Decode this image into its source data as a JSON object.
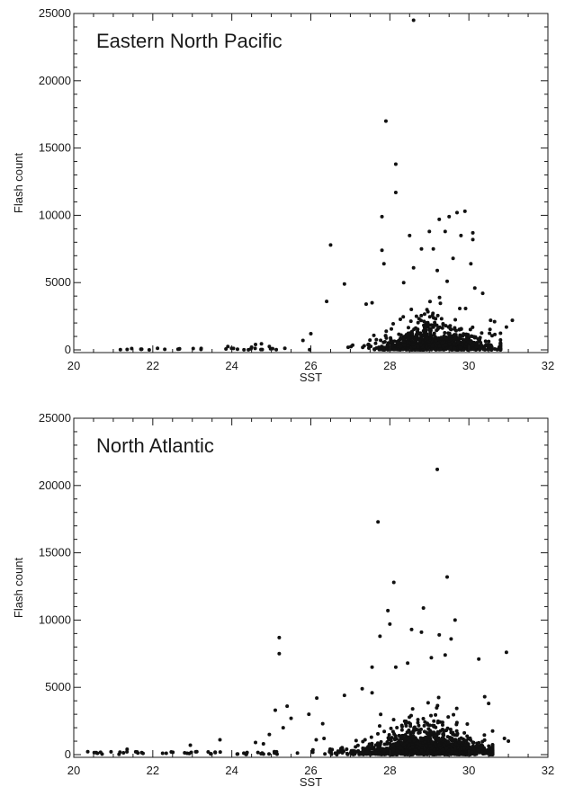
{
  "chart_data": [
    {
      "type": "scatter",
      "title": "Eastern North Pacific",
      "xlabel": "SST",
      "ylabel": "Flash count",
      "xlim": [
        20,
        32
      ],
      "ylim": [
        -200,
        25000
      ],
      "xticks": [
        20,
        22,
        24,
        26,
        28,
        30,
        32
      ],
      "yticks": [
        0,
        5000,
        10000,
        15000,
        20000,
        25000
      ],
      "grid": false,
      "legend": "none",
      "marker_color": "#111111",
      "outliers": [
        {
          "x": 28.6,
          "y": 24500
        },
        {
          "x": 27.9,
          "y": 17000
        },
        {
          "x": 28.15,
          "y": 13800
        },
        {
          "x": 28.15,
          "y": 11700
        },
        {
          "x": 29.9,
          "y": 10300
        },
        {
          "x": 29.7,
          "y": 10200
        },
        {
          "x": 29.5,
          "y": 9900
        },
        {
          "x": 29.25,
          "y": 9700
        },
        {
          "x": 27.8,
          "y": 9900
        },
        {
          "x": 30.1,
          "y": 8700
        },
        {
          "x": 28.5,
          "y": 8500
        },
        {
          "x": 29.0,
          "y": 8800
        },
        {
          "x": 29.4,
          "y": 8800
        },
        {
          "x": 29.8,
          "y": 8500
        },
        {
          "x": 26.5,
          "y": 7800
        },
        {
          "x": 29.1,
          "y": 7500
        },
        {
          "x": 30.1,
          "y": 8200
        },
        {
          "x": 27.8,
          "y": 7400
        },
        {
          "x": 28.8,
          "y": 7500
        },
        {
          "x": 29.6,
          "y": 6800
        },
        {
          "x": 30.05,
          "y": 6400
        },
        {
          "x": 27.85,
          "y": 6400
        },
        {
          "x": 28.6,
          "y": 6100
        },
        {
          "x": 29.2,
          "y": 5900
        },
        {
          "x": 29.45,
          "y": 5100
        },
        {
          "x": 26.85,
          "y": 4900
        },
        {
          "x": 28.35,
          "y": 5000
        },
        {
          "x": 30.15,
          "y": 4600
        },
        {
          "x": 30.35,
          "y": 4200
        },
        {
          "x": 26.4,
          "y": 3600
        },
        {
          "x": 27.55,
          "y": 3500
        },
        {
          "x": 27.4,
          "y": 3400
        },
        {
          "x": 30.55,
          "y": 2200
        },
        {
          "x": 30.65,
          "y": 2100
        },
        {
          "x": 31.1,
          "y": 2200
        },
        {
          "x": 30.95,
          "y": 1700
        },
        {
          "x": 26.0,
          "y": 1200
        },
        {
          "x": 25.8,
          "y": 700
        },
        {
          "x": 24.6,
          "y": 400
        },
        {
          "x": 24.75,
          "y": 450
        },
        {
          "x": 24.5,
          "y": 200
        },
        {
          "x": 24.95,
          "y": 250
        },
        {
          "x": 23.9,
          "y": 250
        }
      ],
      "dense_cloud": {
        "points": 1000,
        "seed": 11,
        "x_center": 29.2,
        "x_spread": 0.75,
        "x_min": 25.3,
        "x_max": 30.8,
        "y_scale": 600,
        "y_max": 4500,
        "sparse_points": 30,
        "sparse_x_range": [
          21.0,
          26.0
        ],
        "sparse_y_max": 120
      }
    },
    {
      "type": "scatter",
      "title": "North Atlantic",
      "xlabel": "SST",
      "ylabel": "Flash count",
      "xlim": [
        20,
        32
      ],
      "ylim": [
        -200,
        25000
      ],
      "xticks": [
        20,
        22,
        24,
        26,
        28,
        30,
        32
      ],
      "yticks": [
        0,
        5000,
        10000,
        15000,
        20000,
        25000
      ],
      "grid": false,
      "legend": "none",
      "marker_color": "#111111",
      "outliers": [
        {
          "x": 29.2,
          "y": 21200
        },
        {
          "x": 27.7,
          "y": 17300
        },
        {
          "x": 29.45,
          "y": 13200
        },
        {
          "x": 28.1,
          "y": 12800
        },
        {
          "x": 28.85,
          "y": 10900
        },
        {
          "x": 27.95,
          "y": 10700
        },
        {
          "x": 28.0,
          "y": 9700
        },
        {
          "x": 29.65,
          "y": 10000
        },
        {
          "x": 28.55,
          "y": 9300
        },
        {
          "x": 25.2,
          "y": 8700
        },
        {
          "x": 27.75,
          "y": 8800
        },
        {
          "x": 28.8,
          "y": 9100
        },
        {
          "x": 29.25,
          "y": 8900
        },
        {
          "x": 29.55,
          "y": 8600
        },
        {
          "x": 30.95,
          "y": 7600
        },
        {
          "x": 25.2,
          "y": 7500
        },
        {
          "x": 30.25,
          "y": 7100
        },
        {
          "x": 28.45,
          "y": 6800
        },
        {
          "x": 28.15,
          "y": 6500
        },
        {
          "x": 27.55,
          "y": 6500
        },
        {
          "x": 29.05,
          "y": 7200
        },
        {
          "x": 29.4,
          "y": 7400
        },
        {
          "x": 27.3,
          "y": 4900
        },
        {
          "x": 27.55,
          "y": 4600
        },
        {
          "x": 26.85,
          "y": 4400
        },
        {
          "x": 26.15,
          "y": 4200
        },
        {
          "x": 30.4,
          "y": 4300
        },
        {
          "x": 30.5,
          "y": 3800
        },
        {
          "x": 25.4,
          "y": 3600
        },
        {
          "x": 25.1,
          "y": 3300
        },
        {
          "x": 25.95,
          "y": 3000
        },
        {
          "x": 25.5,
          "y": 2700
        },
        {
          "x": 26.3,
          "y": 2300
        },
        {
          "x": 25.3,
          "y": 2000
        },
        {
          "x": 30.9,
          "y": 1200
        },
        {
          "x": 31.0,
          "y": 1000
        },
        {
          "x": 24.95,
          "y": 1500
        },
        {
          "x": 24.6,
          "y": 900
        },
        {
          "x": 24.8,
          "y": 800
        },
        {
          "x": 23.7,
          "y": 1100
        },
        {
          "x": 22.95,
          "y": 700
        },
        {
          "x": 21.35,
          "y": 400
        },
        {
          "x": 21.6,
          "y": 200
        },
        {
          "x": 20.6,
          "y": 100
        }
      ],
      "dense_cloud": {
        "points": 1150,
        "seed": 23,
        "x_center": 28.9,
        "x_spread": 0.95,
        "x_min": 24.5,
        "x_max": 30.6,
        "y_scale": 750,
        "y_max": 5500,
        "sparse_points": 45,
        "sparse_x_range": [
          20.3,
          25.5
        ],
        "sparse_y_max": 220
      }
    }
  ]
}
